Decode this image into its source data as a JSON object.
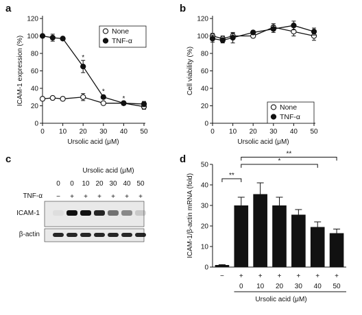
{
  "chart_data": [
    {
      "panel": "a",
      "type": "line",
      "xlabel": "Ursolic acid (μM)",
      "ylabel": "ICAM-1 expression (%)",
      "xlim": [
        0,
        50
      ],
      "ylim": [
        0,
        120
      ],
      "xticks": [
        0,
        10,
        20,
        30,
        40,
        50
      ],
      "yticks": [
        0,
        20,
        40,
        60,
        80,
        100,
        120
      ],
      "legend_position": "top-right",
      "series": [
        {
          "name": "None",
          "marker": "open-circle",
          "x": [
            0,
            5,
            10,
            20,
            30,
            40,
            50
          ],
          "y": [
            28,
            29,
            28,
            30,
            23,
            23,
            19
          ],
          "err": [
            2,
            2,
            2,
            4,
            2,
            2,
            3
          ]
        },
        {
          "name": "TNF-α",
          "marker": "filled-circle",
          "x": [
            0,
            5,
            10,
            20,
            30,
            40,
            50
          ],
          "y": [
            100,
            98,
            97,
            65,
            30,
            23,
            22
          ],
          "err": [
            2,
            4,
            1,
            7,
            2,
            2,
            3
          ]
        }
      ],
      "annotations": [
        {
          "text": "*",
          "x": 20,
          "y": 73
        },
        {
          "text": "*",
          "x": 30,
          "y": 34
        },
        {
          "text": "*",
          "x": 40,
          "y": 26
        },
        {
          "text": "*",
          "x": 50,
          "y": 16
        }
      ]
    },
    {
      "panel": "b",
      "type": "line",
      "xlabel": "Ursolic acid (μM)",
      "ylabel": "Cell viability (%)",
      "xlim": [
        0,
        50
      ],
      "ylim": [
        0,
        120
      ],
      "xticks": [
        0,
        10,
        20,
        30,
        40,
        50
      ],
      "yticks": [
        0,
        20,
        40,
        60,
        80,
        100,
        120
      ],
      "legend_position": "bottom-right",
      "series": [
        {
          "name": "None",
          "marker": "open-circle",
          "x": [
            0,
            5,
            10,
            20,
            30,
            40,
            50
          ],
          "y": [
            100,
            97,
            100,
            100,
            110,
            105,
            100
          ],
          "err": [
            3,
            3,
            3,
            2,
            4,
            5,
            5
          ]
        },
        {
          "name": "TNF-α",
          "marker": "filled-circle",
          "x": [
            0,
            5,
            10,
            20,
            30,
            40,
            50
          ],
          "y": [
            97,
            95,
            98,
            104,
            108,
            112,
            105
          ],
          "err": [
            4,
            3,
            6,
            2,
            4,
            5,
            4
          ]
        }
      ]
    },
    {
      "panel": "c",
      "type": "table",
      "title": "Ursolic acid (μM)",
      "columns": [
        "0",
        "0",
        "10",
        "20",
        "30",
        "40",
        "50"
      ],
      "rows": [
        {
          "label": "TNF-α",
          "values": [
            "−",
            "+",
            "+",
            "+",
            "+",
            "+",
            "+"
          ]
        }
      ],
      "blots": [
        {
          "label": "ICAM-1",
          "intensities": [
            0.05,
            1.0,
            1.0,
            0.9,
            0.55,
            0.45,
            0.15
          ]
        },
        {
          "label": "β-actin",
          "intensities": [
            0.9,
            0.9,
            0.9,
            0.9,
            0.9,
            0.9,
            0.9
          ]
        }
      ]
    },
    {
      "panel": "d",
      "type": "bar",
      "ylabel": "ICAM-1/β-actin mRNA (fold)",
      "xlabel": "Ursolic acid (μM)",
      "ylim": [
        0,
        50
      ],
      "yticks": [
        0,
        10,
        20,
        30,
        40,
        50
      ],
      "categories": [
        "",
        "0",
        "10",
        "20",
        "30",
        "40",
        "50"
      ],
      "tnf_row": [
        "−",
        "+",
        "+",
        "+",
        "+",
        "+",
        "+"
      ],
      "values": [
        1,
        30,
        35.5,
        30,
        25.5,
        19.5,
        16.5
      ],
      "err": [
        0.2,
        4,
        5.5,
        4,
        2.5,
        2.5,
        2
      ],
      "brackets": [
        {
          "from": 0,
          "to": 1,
          "text": "**"
        },
        {
          "from": 1,
          "to": 5,
          "text": "*"
        },
        {
          "from": 1,
          "to": 6,
          "text": "**"
        }
      ]
    }
  ]
}
